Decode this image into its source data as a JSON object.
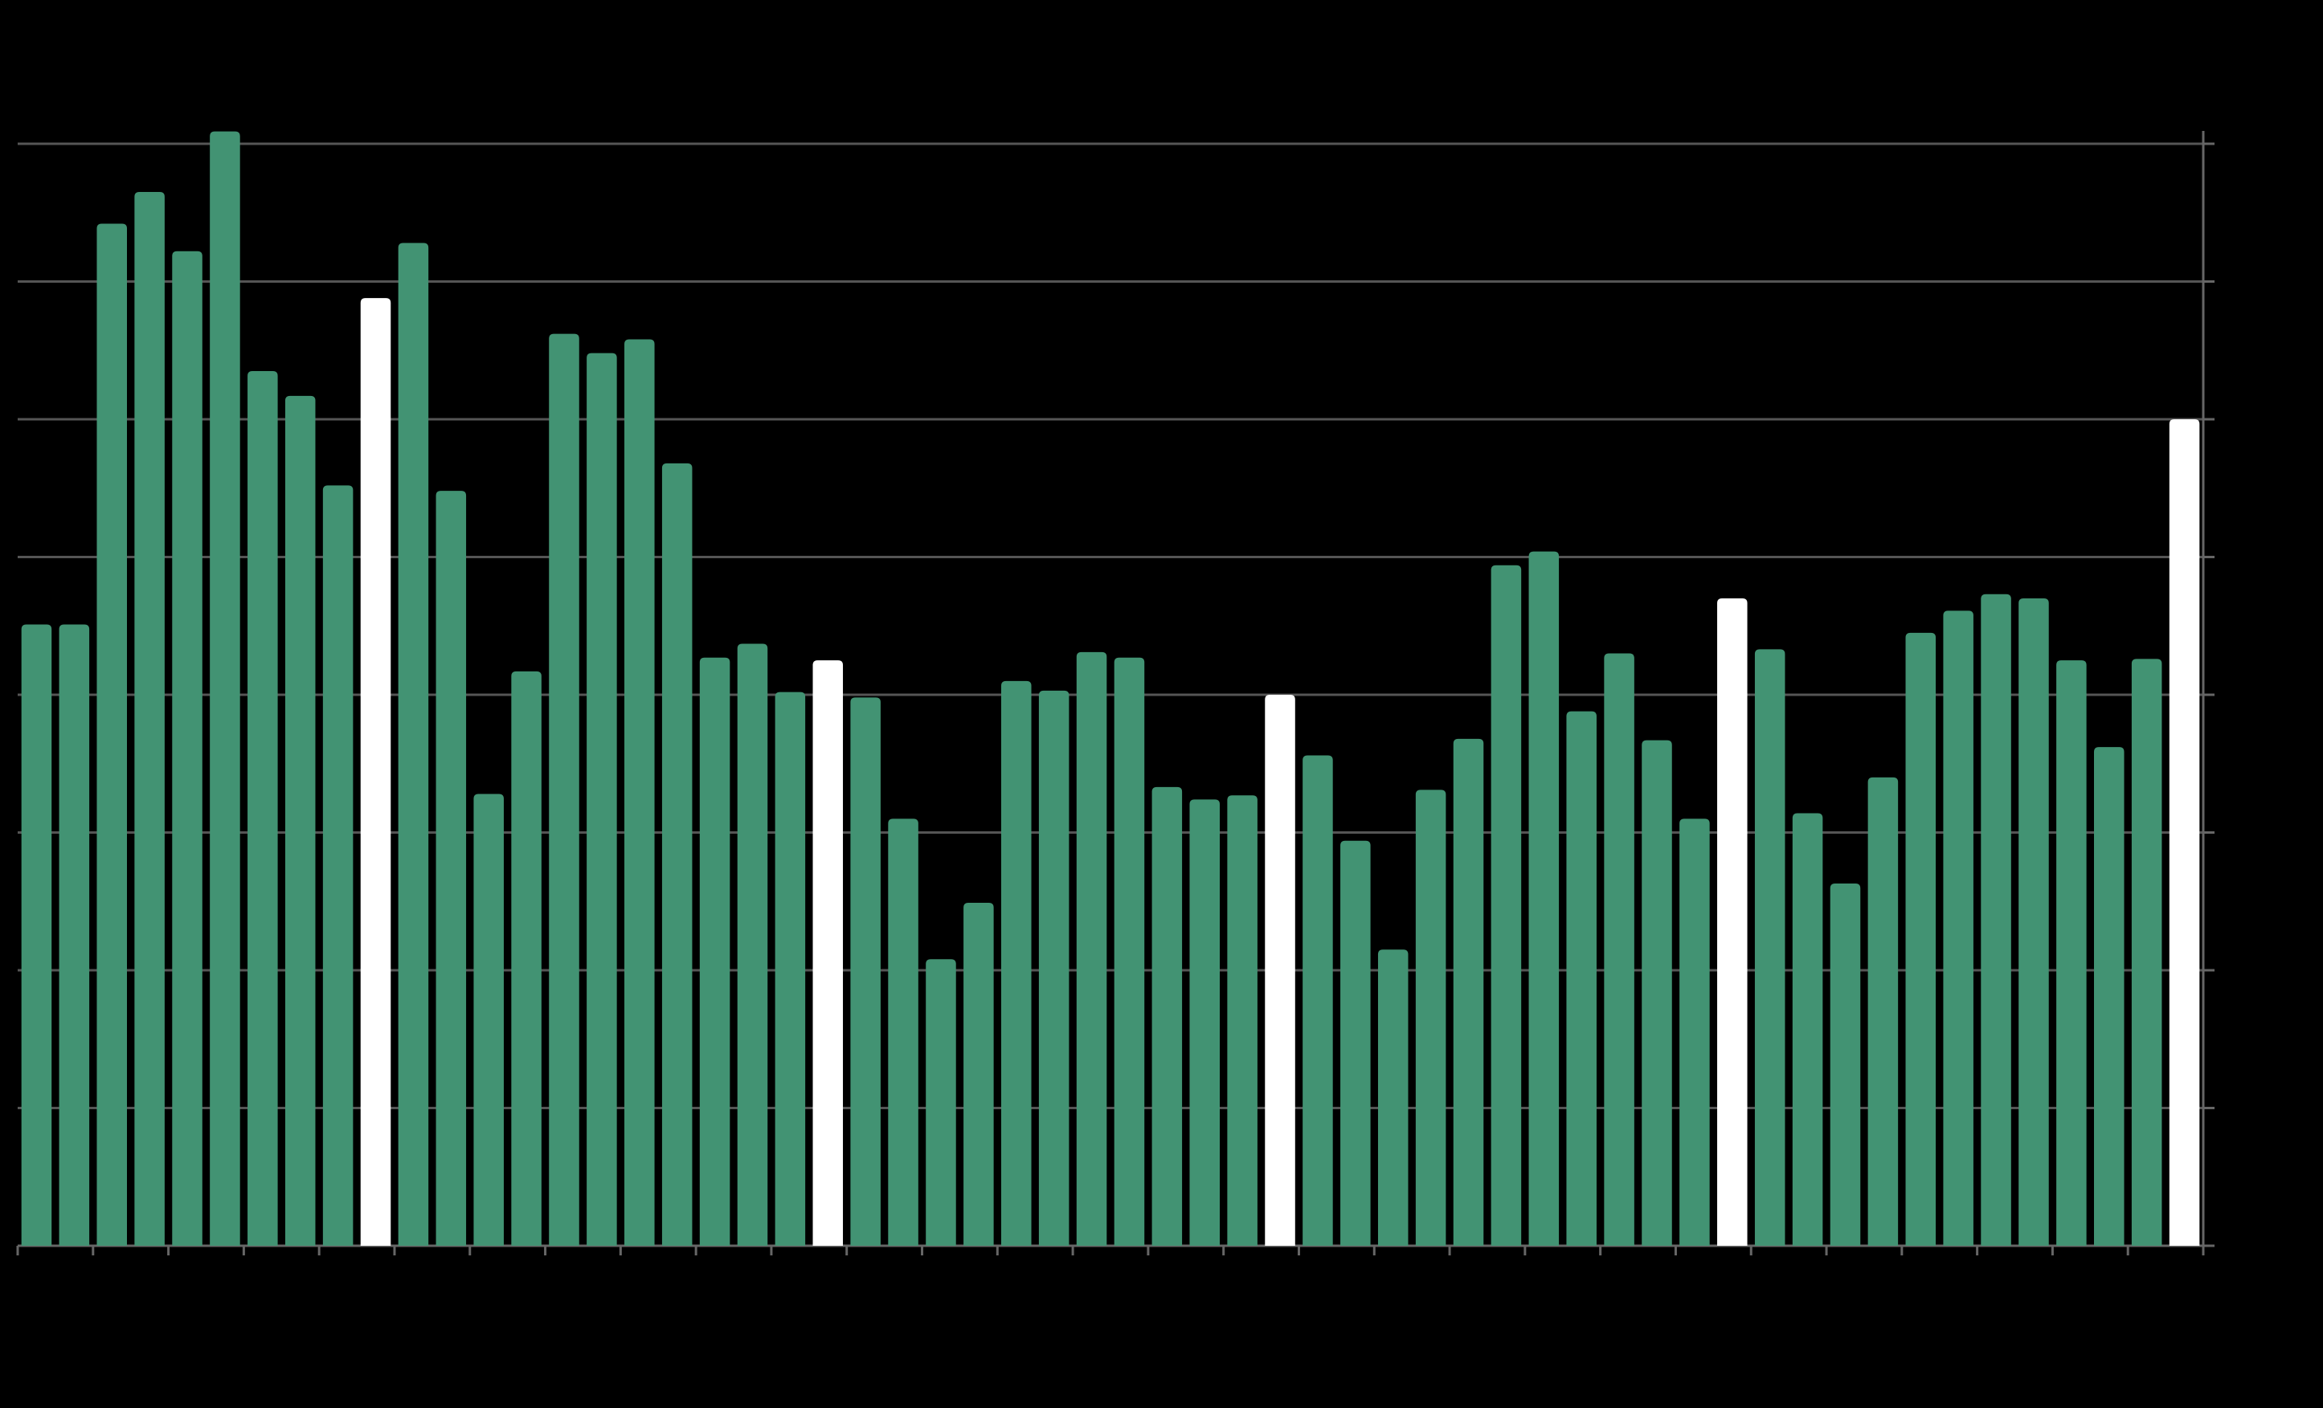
{
  "chart_data": {
    "type": "bar",
    "categories": [
      null,
      null,
      null,
      null,
      null,
      null,
      null,
      null,
      null,
      null,
      null,
      null,
      null,
      null,
      null,
      null,
      null,
      null,
      null,
      null,
      null,
      null,
      null,
      null,
      null,
      null,
      null,
      null,
      null,
      null,
      null,
      null,
      null,
      null,
      null,
      null,
      null,
      null,
      null,
      null,
      null,
      null,
      null,
      null,
      null,
      null,
      null,
      null,
      null,
      null,
      null,
      null,
      null,
      null,
      null,
      null,
      null,
      null
    ],
    "values": [
      4.51,
      4.51,
      7.42,
      7.65,
      7.22,
      8.09,
      6.35,
      6.17,
      5.52,
      6.88,
      7.28,
      5.48,
      3.28,
      4.17,
      6.62,
      6.48,
      6.58,
      5.68,
      4.27,
      4.37,
      4.02,
      4.25,
      3.98,
      3.1,
      2.08,
      2.49,
      4.1,
      4.03,
      4.31,
      4.27,
      3.33,
      3.24,
      3.27,
      4.0,
      3.56,
      2.94,
      2.15,
      3.31,
      3.68,
      4.94,
      5.04,
      3.88,
      4.3,
      3.67,
      3.1,
      4.7,
      4.33,
      3.14,
      2.63,
      3.4,
      4.45,
      4.61,
      4.73,
      4.7,
      4.25,
      3.62,
      4.26,
      6.0
    ],
    "colors": [
      "#429373",
      "#429373",
      "#429373",
      "#429373",
      "#429373",
      "#429373",
      "#429373",
      "#429373",
      "#429373",
      "#ffffff",
      "#429373",
      "#429373",
      "#429373",
      "#429373",
      "#429373",
      "#429373",
      "#429373",
      "#429373",
      "#429373",
      "#429373",
      "#429373",
      "#ffffff",
      "#429373",
      "#429373",
      "#429373",
      "#429373",
      "#429373",
      "#429373",
      "#429373",
      "#429373",
      "#429373",
      "#429373",
      "#429373",
      "#ffffff",
      "#429373",
      "#429373",
      "#429373",
      "#429373",
      "#429373",
      "#429373",
      "#429373",
      "#429373",
      "#429373",
      "#429373",
      "#429373",
      "#ffffff",
      "#429373",
      "#429373",
      "#429373",
      "#429373",
      "#429373",
      "#429373",
      "#429373",
      "#429373",
      "#429373",
      "#429373",
      "#429373",
      "#ffffff"
    ],
    "ylim": [
      0,
      8
    ],
    "yticks": [
      0,
      1,
      2,
      3,
      4,
      5,
      6,
      7,
      8
    ],
    "grid": true
  }
}
